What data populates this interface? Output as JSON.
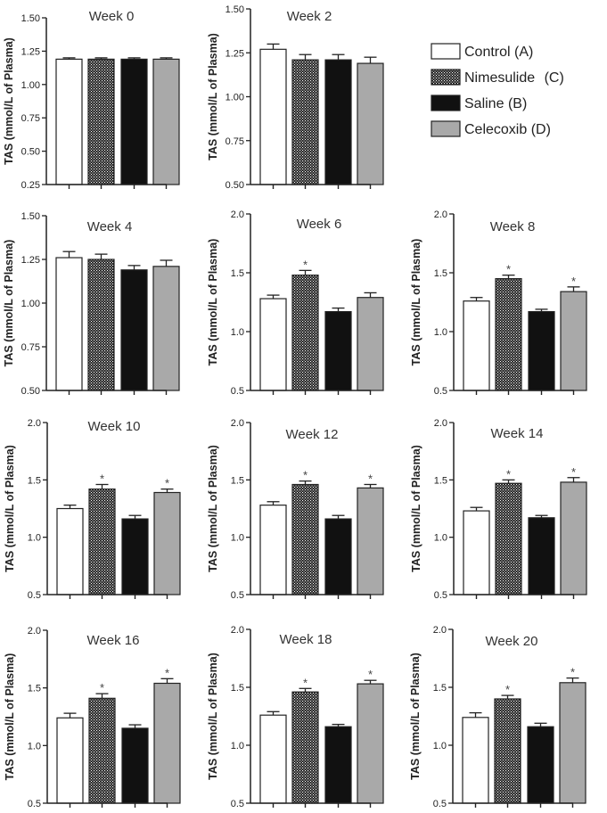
{
  "legend": {
    "items": [
      {
        "label": "Control",
        "code": "(A)",
        "fill": "control"
      },
      {
        "label": "Nimesulide",
        "code": "(C)",
        "fill": "nimesulide"
      },
      {
        "label": "Saline",
        "code": "(B)",
        "fill": "saline"
      },
      {
        "label": "Celecoxib",
        "code": "(D)",
        "fill": "celecoxib"
      }
    ]
  },
  "colors": {
    "control": "#ffffff",
    "nimesulide": "#2a2a2a",
    "saline": "#111111",
    "celecoxib": "#a9a9a9",
    "axis": "#222222"
  },
  "chart_data": [
    {
      "type": "bar",
      "title": "Week 0",
      "ylabel": "TAS (mmol/L of Plasma)",
      "categories": [
        "Control",
        "Nimesulide",
        "Saline",
        "Celecoxib"
      ],
      "values": [
        1.19,
        1.19,
        1.19,
        1.19
      ],
      "errors": [
        0.01,
        0.01,
        0.01,
        0.01
      ],
      "significant": [
        false,
        false,
        false,
        false
      ],
      "ylim": [
        0.25,
        1.5
      ],
      "yticks": [
        "0.25",
        "0.50",
        "0.75",
        "1.00",
        "1.25",
        "1.50"
      ]
    },
    {
      "type": "bar",
      "title": "Week 2",
      "ylabel": "TAS (mmol/L of Plasma)",
      "categories": [
        "Control",
        "Nimesulide",
        "Saline",
        "Celecoxib"
      ],
      "values": [
        1.27,
        1.21,
        1.21,
        1.19
      ],
      "errors": [
        0.03,
        0.03,
        0.03,
        0.035
      ],
      "significant": [
        false,
        false,
        false,
        false
      ],
      "ylim": [
        0.5,
        1.5
      ],
      "yticks": [
        "0.50",
        "0.75",
        "1.00",
        "1.25",
        "1.50"
      ]
    },
    {
      "type": "bar",
      "title": "Week 4",
      "ylabel": "TAS (mmol/L of Plasma)",
      "categories": [
        "Control",
        "Nimesulide",
        "Saline",
        "Celecoxib"
      ],
      "values": [
        1.26,
        1.25,
        1.19,
        1.21
      ],
      "errors": [
        0.035,
        0.03,
        0.025,
        0.035
      ],
      "significant": [
        false,
        false,
        false,
        false
      ],
      "ylim": [
        0.5,
        1.5
      ],
      "yticks": [
        "0.50",
        "0.75",
        "1.00",
        "1.25",
        "1.50"
      ]
    },
    {
      "type": "bar",
      "title": "Week 6",
      "ylabel": "TAS (mmol/L of Plasma)",
      "categories": [
        "Control",
        "Nimesulide",
        "Saline",
        "Celecoxib"
      ],
      "values": [
        1.28,
        1.48,
        1.17,
        1.29
      ],
      "errors": [
        0.03,
        0.04,
        0.03,
        0.04
      ],
      "significant": [
        false,
        true,
        false,
        false
      ],
      "ylim": [
        0.5,
        2.0
      ],
      "yticks": [
        "0.5",
        "1.0",
        "1.5",
        "2.0"
      ]
    },
    {
      "type": "bar",
      "title": "Week 8",
      "ylabel": "TAS (mmol/L of Plasma)",
      "categories": [
        "Control",
        "Nimesulide",
        "Saline",
        "Celecoxib"
      ],
      "values": [
        1.26,
        1.45,
        1.17,
        1.34
      ],
      "errors": [
        0.03,
        0.03,
        0.02,
        0.04
      ],
      "significant": [
        false,
        true,
        false,
        true
      ],
      "ylim": [
        0.5,
        2.0
      ],
      "yticks": [
        "0.5",
        "1.0",
        "1.5",
        "2.0"
      ]
    },
    {
      "type": "bar",
      "title": "Week 10",
      "ylabel": "TAS (mmol/L of Plasma)",
      "categories": [
        "Control",
        "Nimesulide",
        "Saline",
        "Celecoxib"
      ],
      "values": [
        1.25,
        1.42,
        1.16,
        1.39
      ],
      "errors": [
        0.03,
        0.04,
        0.03,
        0.03
      ],
      "significant": [
        false,
        true,
        false,
        true
      ],
      "ylim": [
        0.5,
        2.0
      ],
      "yticks": [
        "0.5",
        "1.0",
        "1.5",
        "2.0"
      ]
    },
    {
      "type": "bar",
      "title": "Week 12",
      "ylabel": "TAS (mmol/L of Plasma)",
      "categories": [
        "Control",
        "Nimesulide",
        "Saline",
        "Celecoxib"
      ],
      "values": [
        1.28,
        1.46,
        1.16,
        1.43
      ],
      "errors": [
        0.03,
        0.03,
        0.03,
        0.03
      ],
      "significant": [
        false,
        true,
        false,
        true
      ],
      "ylim": [
        0.5,
        2.0
      ],
      "yticks": [
        "0.5",
        "1.0",
        "1.5",
        "2.0"
      ]
    },
    {
      "type": "bar",
      "title": "Week 14",
      "ylabel": "TAS (mmol/L of Plasma)",
      "categories": [
        "Control",
        "Nimesulide",
        "Saline",
        "Celecoxib"
      ],
      "values": [
        1.23,
        1.47,
        1.17,
        1.48
      ],
      "errors": [
        0.03,
        0.03,
        0.02,
        0.04
      ],
      "significant": [
        false,
        true,
        false,
        true
      ],
      "ylim": [
        0.5,
        2.0
      ],
      "yticks": [
        "0.5",
        "1.0",
        "1.5",
        "2.0"
      ]
    },
    {
      "type": "bar",
      "title": "Week 16",
      "ylabel": "TAS (mmol/L of Plasma)",
      "categories": [
        "Control",
        "Nimesulide",
        "Saline",
        "Celecoxib"
      ],
      "values": [
        1.24,
        1.41,
        1.15,
        1.54
      ],
      "errors": [
        0.04,
        0.04,
        0.03,
        0.04
      ],
      "significant": [
        false,
        true,
        false,
        true
      ],
      "ylim": [
        0.5,
        2.0
      ],
      "yticks": [
        "0.5",
        "1.0",
        "1.5",
        "2.0"
      ]
    },
    {
      "type": "bar",
      "title": "Week 18",
      "ylabel": "TAS (mmol/L of Plasma)",
      "categories": [
        "Control",
        "Nimesulide",
        "Saline",
        "Celecoxib"
      ],
      "values": [
        1.26,
        1.46,
        1.16,
        1.53
      ],
      "errors": [
        0.03,
        0.03,
        0.02,
        0.03
      ],
      "significant": [
        false,
        true,
        false,
        true
      ],
      "ylim": [
        0.5,
        2.0
      ],
      "yticks": [
        "0.5",
        "1.0",
        "1.5",
        "2.0"
      ]
    },
    {
      "type": "bar",
      "title": "Week 20",
      "ylabel": "TAS (mmol/L of Plasma)",
      "categories": [
        "Control",
        "Nimesulide",
        "Saline",
        "Celecoxib"
      ],
      "values": [
        1.24,
        1.4,
        1.16,
        1.54
      ],
      "errors": [
        0.04,
        0.03,
        0.03,
        0.04
      ],
      "significant": [
        false,
        true,
        false,
        true
      ],
      "ylim": [
        0.5,
        2.0
      ],
      "yticks": [
        "0.5",
        "1.0",
        "1.5",
        "2.0"
      ]
    }
  ]
}
